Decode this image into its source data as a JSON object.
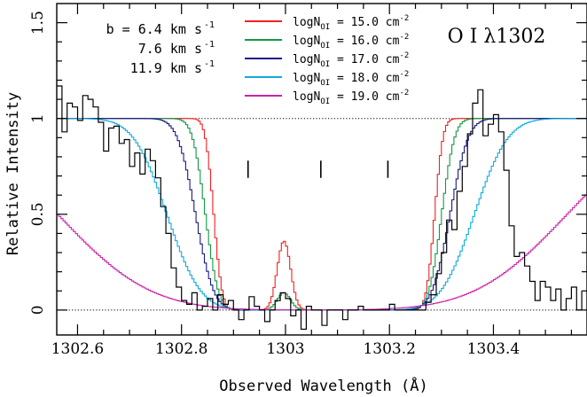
{
  "chart_data": {
    "type": "line",
    "title": "O I λ1302",
    "xlabel": "Observed Wavelength (Å)",
    "ylabel": "Relative Intensity",
    "xlim": [
      1302.56,
      1303.58
    ],
    "ylim": [
      -0.13,
      1.6
    ],
    "x_ticks": [
      {
        "value": 1302.6,
        "label": "1302.6"
      },
      {
        "value": 1302.8,
        "label": "1302.8"
      },
      {
        "value": 1303.0,
        "label": "1303"
      },
      {
        "value": 1303.2,
        "label": "1303.2"
      },
      {
        "value": 1303.4,
        "label": "1303.4"
      }
    ],
    "y_ticks": [
      {
        "value": 0,
        "label": "0"
      },
      {
        "value": 0.5,
        "label": "0.5"
      },
      {
        "value": 1,
        "label": "1"
      },
      {
        "value": 1.5,
        "label": "1.5"
      }
    ],
    "b_values": {
      "prefix": "b = ",
      "lines": [
        "6.4 km s",
        "7.6 km s",
        "11.9 km s"
      ],
      "exponent": "-1"
    },
    "velocity_markers": [
      1302.928,
      1303.068,
      1303.197
    ],
    "reference_lines": [
      0,
      1
    ],
    "series": [
      {
        "name_prefix": "logN",
        "name_sub": "OI",
        "name_value": " = 15.0 cm",
        "name_exp": "-2",
        "color": "#ee2222",
        "center_shift": 0.0,
        "peak": 0.36
      },
      {
        "name_prefix": "logN",
        "name_sub": "OI",
        "name_value": " = 16.0 cm",
        "name_exp": "-2",
        "color": "#119944",
        "center_shift": 0.016,
        "peak": 0.09
      },
      {
        "name_prefix": "logN",
        "name_sub": "OI",
        "name_value": " = 17.0 cm",
        "name_exp": "-2",
        "color": "#1a1a88",
        "center_shift": 0.035,
        "peak": 0.0
      },
      {
        "name_prefix": "logN",
        "name_sub": "OI",
        "name_value": " = 18.0 cm",
        "name_exp": "-2",
        "color": "#11aadd",
        "center_shift": 0.09,
        "peak": 0.0
      },
      {
        "name_prefix": "logN",
        "name_sub": "OI",
        "name_value": " = 19.0 cm",
        "name_exp": "-2",
        "color": "#cc22aa",
        "center_shift": 0.3,
        "peak": 0.0
      }
    ],
    "observed_spectrum": {
      "color": "#000000",
      "x": [
        1302.56,
        1302.57,
        1302.58,
        1302.59,
        1302.6,
        1302.61,
        1302.62,
        1302.63,
        1302.64,
        1302.65,
        1302.66,
        1302.67,
        1302.68,
        1302.69,
        1302.7,
        1302.71,
        1302.72,
        1302.73,
        1302.74,
        1302.75,
        1302.76,
        1302.77,
        1302.78,
        1302.79,
        1302.8,
        1302.81,
        1302.82,
        1302.83,
        1302.84,
        1302.85,
        1302.86,
        1302.87,
        1302.88,
        1302.89,
        1302.9,
        1302.91,
        1302.92,
        1302.93,
        1302.94,
        1302.95,
        1302.96,
        1302.97,
        1302.98,
        1302.99,
        1303.0,
        1303.01,
        1303.02,
        1303.03,
        1303.04,
        1303.05,
        1303.06,
        1303.07,
        1303.08,
        1303.09,
        1303.1,
        1303.11,
        1303.12,
        1303.13,
        1303.14,
        1303.15,
        1303.16,
        1303.17,
        1303.18,
        1303.19,
        1303.2,
        1303.21,
        1303.22,
        1303.23,
        1303.24,
        1303.25,
        1303.26,
        1303.27,
        1303.28,
        1303.29,
        1303.3,
        1303.31,
        1303.32,
        1303.33,
        1303.34,
        1303.35,
        1303.36,
        1303.37,
        1303.38,
        1303.39,
        1303.4,
        1303.41,
        1303.42,
        1303.43,
        1303.44,
        1303.45,
        1303.46,
        1303.47,
        1303.48,
        1303.49,
        1303.5,
        1303.51,
        1303.52,
        1303.53,
        1303.54,
        1303.55,
        1303.56,
        1303.57
      ],
      "y": [
        1.17,
        0.93,
        1.08,
        1.06,
        0.99,
        1.12,
        1.1,
        1.06,
        0.98,
        0.83,
        0.95,
        0.96,
        0.87,
        0.89,
        0.75,
        0.82,
        0.71,
        0.84,
        0.78,
        0.69,
        0.54,
        0.4,
        0.22,
        0.12,
        0.05,
        0.03,
        0.09,
        0.0,
        0.02,
        0.06,
        0.0,
        0.08,
        0.03,
        0.05,
        0.0,
        -0.05,
        0.0,
        0.07,
        0.02,
        0.0,
        -0.06,
        0.0,
        0.05,
        0.09,
        0.06,
        -0.03,
        0.0,
        -0.1,
        0.02,
        0.0,
        0.0,
        -0.08,
        0.0,
        0.0,
        0.0,
        -0.05,
        0.0,
        0.0,
        0.02,
        0.0,
        0.0,
        0.0,
        0.0,
        0.0,
        0.03,
        0.0,
        0.0,
        0.0,
        0.0,
        0.0,
        0.0,
        0.04,
        0.08,
        0.19,
        0.3,
        0.47,
        0.42,
        0.62,
        0.75,
        0.92,
        1.08,
        1.15,
        0.91,
        0.97,
        1.02,
        0.93,
        0.73,
        0.44,
        0.28,
        0.3,
        0.23,
        0.15,
        0.05,
        0.15,
        0.12,
        0.05,
        0.11,
        0.0,
        0.06,
        0.12,
        0.0,
        0.1
      ]
    }
  }
}
